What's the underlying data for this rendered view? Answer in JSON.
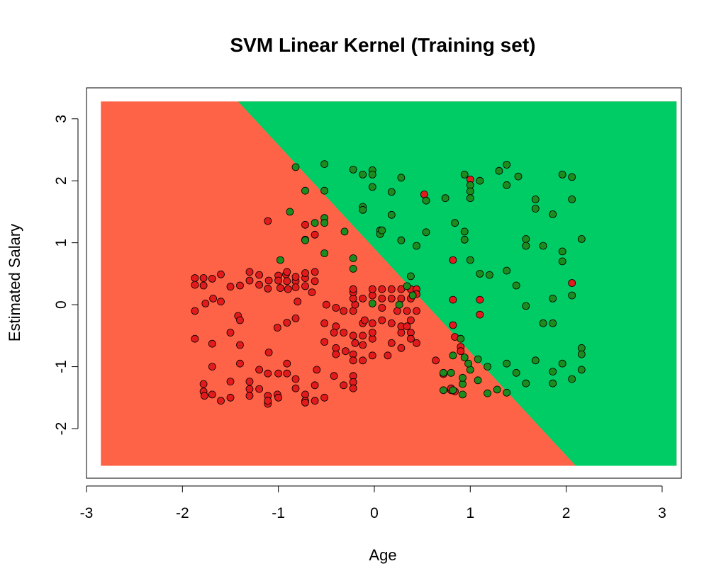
{
  "chart_data": {
    "type": "scatter",
    "title": "SVM Linear Kernel (Training set)",
    "xlabel": "Age",
    "ylabel": "Estimated Salary",
    "xlim": [
      -3.0,
      3.2
    ],
    "ylim": [
      -2.8,
      3.5
    ],
    "region_x": [
      -2.85,
      3.15
    ],
    "region_y": [
      -2.6,
      3.28
    ],
    "xticks": [
      -3,
      -2,
      -1,
      0,
      1,
      2,
      3
    ],
    "yticks": [
      -2,
      -1,
      0,
      1,
      2,
      3
    ],
    "tick_labels_x": [
      "-3",
      "-2",
      "-1",
      "0",
      "1",
      "2",
      "3"
    ],
    "tick_labels_y": [
      "-2",
      "-1",
      "0",
      "1",
      "2",
      "3"
    ],
    "decision_boundary": {
      "points": [
        [
          -1.42,
          3.28
        ],
        [
          2.1,
          -2.6
        ]
      ]
    },
    "colors": {
      "region_0": "#FF6347",
      "region_1": "#00CC66",
      "point_0": "#E31A1C",
      "point_1": "#1E8B1E",
      "point_outline": "#000000"
    },
    "grid": false,
    "series": [
      {
        "points": [
          [
            -1.87,
            0.43
          ],
          [
            -1.87,
            0.32
          ],
          [
            -1.78,
            0.43
          ],
          [
            -1.69,
            0.42
          ],
          [
            -1.6,
            0.49
          ],
          [
            -1.78,
            0.31
          ],
          [
            -1.68,
            0.1
          ],
          [
            -1.76,
            0.02
          ],
          [
            -1.87,
            -0.1
          ],
          [
            -1.6,
            0.05
          ],
          [
            -1.87,
            -0.55
          ],
          [
            -1.69,
            -0.63
          ],
          [
            -1.5,
            -0.45
          ],
          [
            -1.69,
            -1.0
          ],
          [
            -1.78,
            -1.28
          ],
          [
            -1.78,
            -1.4
          ],
          [
            -1.77,
            -1.47
          ],
          [
            -1.69,
            -1.45
          ],
          [
            -1.6,
            -1.55
          ],
          [
            -1.5,
            -1.5
          ],
          [
            -1.5,
            -1.24
          ],
          [
            -1.4,
            -0.65
          ],
          [
            -1.42,
            -0.18
          ],
          [
            -1.4,
            -0.25
          ],
          [
            -1.5,
            0.29
          ],
          [
            -1.4,
            0.31
          ],
          [
            -1.3,
            0.39
          ],
          [
            -1.3,
            0.53
          ],
          [
            -1.2,
            0.48
          ],
          [
            -1.2,
            0.32
          ],
          [
            -1.11,
            0.26
          ],
          [
            -1.1,
            0.39
          ],
          [
            -1.0,
            0.47
          ],
          [
            -0.92,
            0.49
          ],
          [
            -1.0,
            0.39
          ],
          [
            -0.91,
            0.38
          ],
          [
            -0.82,
            0.38
          ],
          [
            -0.82,
            0.28
          ],
          [
            -0.72,
            0.3
          ],
          [
            -0.72,
            0.43
          ],
          [
            -0.72,
            0.51
          ],
          [
            -0.62,
            0.53
          ],
          [
            -0.62,
            0.38
          ],
          [
            -0.91,
            0.53
          ],
          [
            -0.98,
            0.27
          ],
          [
            -0.9,
            0.25
          ],
          [
            -0.82,
            0.45
          ],
          [
            -0.65,
            0.2
          ],
          [
            -0.8,
            0.05
          ],
          [
            -1.11,
            1.35
          ],
          [
            -0.72,
            1.29
          ],
          [
            -0.72,
            1.05
          ],
          [
            -0.62,
            1.13
          ],
          [
            -1.1,
            -0.77
          ],
          [
            -1.01,
            -0.37
          ],
          [
            -0.91,
            -0.29
          ],
          [
            -0.82,
            -0.22
          ],
          [
            -0.91,
            -0.95
          ],
          [
            -0.91,
            -1.11
          ],
          [
            -1.0,
            -1.11
          ],
          [
            -1.11,
            -1.11
          ],
          [
            -1.11,
            -1.47
          ],
          [
            -1.01,
            -1.45
          ],
          [
            -1.0,
            -1.5
          ],
          [
            -1.11,
            -1.6
          ],
          [
            -1.11,
            -1.55
          ],
          [
            -1.3,
            -1.24
          ],
          [
            -1.3,
            -1.36
          ],
          [
            -1.3,
            -1.47
          ],
          [
            -1.2,
            -1.05
          ],
          [
            -1.4,
            -0.95
          ],
          [
            -1.2,
            -1.36
          ],
          [
            -0.72,
            -1.45
          ],
          [
            -0.72,
            -1.55
          ],
          [
            -0.72,
            -1.58
          ],
          [
            -0.62,
            -1.55
          ],
          [
            -0.52,
            -1.5
          ],
          [
            -0.62,
            -1.3
          ],
          [
            -0.82,
            -1.2
          ],
          [
            -0.82,
            -1.35
          ],
          [
            -0.6,
            -1.05
          ],
          [
            -0.4,
            -0.05
          ],
          [
            -0.4,
            -0.35
          ],
          [
            -0.4,
            -0.7
          ],
          [
            -0.3,
            -0.75
          ],
          [
            -0.4,
            -0.8
          ],
          [
            -0.42,
            -1.15
          ],
          [
            -0.32,
            -1.3
          ],
          [
            -0.22,
            -1.15
          ],
          [
            -0.22,
            -1.25
          ],
          [
            -0.32,
            -0.1
          ],
          [
            -0.22,
            -0.1
          ],
          [
            -0.2,
            0.0
          ],
          [
            -0.22,
            0.1
          ],
          [
            -0.22,
            0.2
          ],
          [
            -0.22,
            0.25
          ],
          [
            -0.12,
            0.1
          ],
          [
            -0.02,
            0.15
          ],
          [
            -0.02,
            0.25
          ],
          [
            0.08,
            0.25
          ],
          [
            -0.12,
            -0.3
          ],
          [
            -0.02,
            -0.3
          ],
          [
            -0.22,
            -0.5
          ],
          [
            -0.12,
            -0.5
          ],
          [
            -0.02,
            -0.55
          ],
          [
            -0.22,
            -0.8
          ],
          [
            -0.22,
            -0.9
          ],
          [
            -0.12,
            -0.65
          ],
          [
            -0.22,
            -1.25
          ],
          [
            -0.22,
            -1.35
          ],
          [
            0.08,
            0.1
          ],
          [
            0.08,
            -0.05
          ],
          [
            0.18,
            0.25
          ],
          [
            0.18,
            0.1
          ],
          [
            0.28,
            0.25
          ],
          [
            0.28,
            0.1
          ],
          [
            0.38,
            0.25
          ],
          [
            0.38,
            0.1
          ],
          [
            0.44,
            0.25
          ],
          [
            0.44,
            0.17
          ],
          [
            0.08,
            -0.25
          ],
          [
            0.18,
            -0.3
          ],
          [
            0.28,
            -0.45
          ],
          [
            0.28,
            -0.35
          ],
          [
            0.38,
            -0.25
          ],
          [
            0.38,
            -0.45
          ],
          [
            0.38,
            -0.55
          ],
          [
            0.28,
            -0.7
          ],
          [
            0.18,
            -0.62
          ],
          [
            0.14,
            -0.82
          ],
          [
            -0.02,
            -0.82
          ],
          [
            -0.12,
            -0.9
          ],
          [
            -0.02,
            -0.45
          ],
          [
            0.24,
            -0.1
          ],
          [
            0.34,
            -0.1
          ],
          [
            0.44,
            -0.1
          ],
          [
            0.34,
            -0.35
          ],
          [
            0.44,
            -0.62
          ],
          [
            0.64,
            -0.9
          ],
          [
            0.84,
            -0.52
          ],
          [
            0.9,
            -0.68
          ],
          [
            0.9,
            -0.75
          ],
          [
            0.8,
            -1.38
          ],
          [
            0.8,
            -1.35
          ],
          [
            0.72,
            -1.12
          ],
          [
            0.84,
            -1.4
          ],
          [
            -0.42,
            -0.45
          ],
          [
            -0.52,
            -0.3
          ],
          [
            -0.52,
            -0.6
          ],
          [
            -0.32,
            -0.45
          ],
          [
            -0.2,
            -0.62
          ],
          [
            -0.1,
            -0.25
          ],
          [
            -0.5,
            0.0
          ],
          [
            0.52,
            1.78
          ],
          [
            1.0,
            2.02
          ],
          [
            0.82,
            0.72
          ],
          [
            0.82,
            0.08
          ],
          [
            0.82,
            -0.33
          ],
          [
            1.1,
            0.08
          ],
          [
            1.1,
            -0.16
          ],
          [
            2.06,
            0.35
          ]
        ]
      },
      {
        "points": [
          [
            -0.82,
            2.22
          ],
          [
            -0.52,
            2.27
          ],
          [
            -0.72,
            1.84
          ],
          [
            -0.52,
            1.84
          ],
          [
            -0.88,
            1.5
          ],
          [
            -0.52,
            1.4
          ],
          [
            -0.52,
            1.32
          ],
          [
            -0.62,
            1.32
          ],
          [
            -0.31,
            1.18
          ],
          [
            -0.72,
            1.04
          ],
          [
            -0.98,
            0.72
          ],
          [
            -0.52,
            0.83
          ],
          [
            -0.22,
            0.75
          ],
          [
            -0.22,
            0.58
          ],
          [
            -0.22,
            2.18
          ],
          [
            -0.12,
            2.1
          ],
          [
            -0.02,
            2.17
          ],
          [
            -0.02,
            2.1
          ],
          [
            -0.02,
            1.9
          ],
          [
            -0.12,
            1.58
          ],
          [
            -0.12,
            1.53
          ],
          [
            0.06,
            1.2
          ],
          [
            0.06,
            1.14
          ],
          [
            0.18,
            1.82
          ],
          [
            0.18,
            1.45
          ],
          [
            0.28,
            2.05
          ],
          [
            0.28,
            1.04
          ],
          [
            0.38,
            0.46
          ],
          [
            0.44,
            0.95
          ],
          [
            0.54,
            1.68
          ],
          [
            0.54,
            1.17
          ],
          [
            0.74,
            1.72
          ],
          [
            0.84,
            1.32
          ],
          [
            0.94,
            2.1
          ],
          [
            1.0,
            1.93
          ],
          [
            1.0,
            1.83
          ],
          [
            1.0,
            1.72
          ],
          [
            1.1,
            2.0
          ],
          [
            0.94,
            1.18
          ],
          [
            0.94,
            1.05
          ],
          [
            1.0,
            0.72
          ],
          [
            1.1,
            0.5
          ],
          [
            1.2,
            0.48
          ],
          [
            1.3,
            2.16
          ],
          [
            1.38,
            2.26
          ],
          [
            1.38,
            1.93
          ],
          [
            1.5,
            2.07
          ],
          [
            1.38,
            0.55
          ],
          [
            1.48,
            0.31
          ],
          [
            1.58,
            1.06
          ],
          [
            1.58,
            0.95
          ],
          [
            1.58,
            -0.02
          ],
          [
            1.68,
            1.7
          ],
          [
            1.68,
            1.55
          ],
          [
            1.76,
            0.95
          ],
          [
            1.86,
            1.46
          ],
          [
            1.96,
            2.1
          ],
          [
            2.06,
            2.06
          ],
          [
            2.06,
            1.7
          ],
          [
            1.96,
            0.86
          ],
          [
            1.96,
            0.7
          ],
          [
            2.16,
            1.06
          ],
          [
            1.76,
            -0.3
          ],
          [
            1.86,
            -0.3
          ],
          [
            1.86,
            0.1
          ],
          [
            2.06,
            0.15
          ],
          [
            2.16,
            -0.7
          ],
          [
            2.16,
            -0.8
          ],
          [
            2.16,
            -1.05
          ],
          [
            1.96,
            -0.95
          ],
          [
            1.86,
            -1.08
          ],
          [
            1.86,
            -1.27
          ],
          [
            2.06,
            -1.2
          ],
          [
            1.68,
            -0.9
          ],
          [
            1.58,
            -1.27
          ],
          [
            1.48,
            -1.1
          ],
          [
            1.38,
            -0.95
          ],
          [
            1.38,
            -1.42
          ],
          [
            1.28,
            -1.37
          ],
          [
            1.18,
            -1.43
          ],
          [
            1.18,
            -1.0
          ],
          [
            1.08,
            -0.88
          ],
          [
            1.08,
            -1.22
          ],
          [
            1.0,
            -1.05
          ],
          [
            0.98,
            -0.95
          ],
          [
            0.9,
            -0.55
          ],
          [
            0.94,
            -0.85
          ],
          [
            0.82,
            -0.82
          ],
          [
            0.8,
            -1.1
          ],
          [
            0.72,
            -1.1
          ],
          [
            0.72,
            -1.38
          ],
          [
            0.82,
            -1.38
          ],
          [
            0.92,
            -1.28
          ],
          [
            0.92,
            -1.45
          ],
          [
            0.92,
            -1.18
          ],
          [
            -0.02,
            0.02
          ],
          [
            0.26,
            0.0
          ],
          [
            0.4,
            0.15
          ],
          [
            0.34,
            0.3
          ],
          [
            0.08,
            1.2
          ]
        ]
      }
    ]
  }
}
